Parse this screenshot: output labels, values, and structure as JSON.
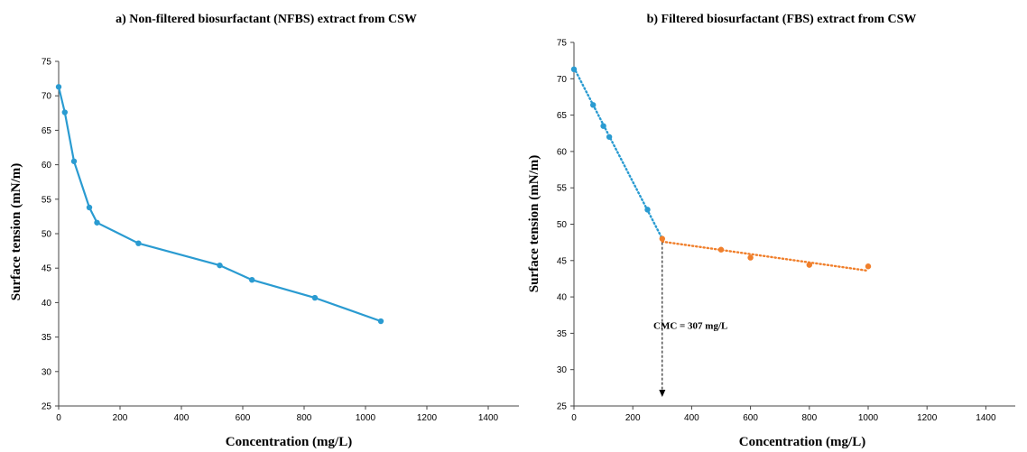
{
  "chart_data": [
    {
      "type": "line",
      "title": "a) Non-filtered biosurfactant (NFBS) extract from CSW",
      "xlabel": "Concentration (mg/L)",
      "ylabel": "Surface tension (mN/m)",
      "xlim": [
        0,
        1500
      ],
      "ylim": [
        25,
        75
      ],
      "xticks": [
        "0",
        "200",
        "400",
        "600",
        "800",
        "1000",
        "1200",
        "1400"
      ],
      "yticks": [
        "25",
        "30",
        "35",
        "40",
        "45",
        "50",
        "55",
        "60",
        "65",
        "70",
        "75"
      ],
      "grid": false,
      "series": [
        {
          "color": "#2a9bd1",
          "style": "solid",
          "x": [
            0,
            20,
            50,
            100,
            125,
            260,
            525,
            630,
            835,
            1050
          ],
          "y": [
            71.3,
            67.6,
            60.5,
            53.8,
            51.6,
            48.6,
            45.4,
            43.3,
            40.7,
            37.3
          ]
        }
      ]
    },
    {
      "type": "scatter",
      "title": "b) Filtered biosurfactant (FBS) extract from CSW",
      "xlabel": "Concentration (mg/L)",
      "ylabel": "Surface tension (mN/m)",
      "xlim": [
        0,
        1500
      ],
      "ylim": [
        25,
        75
      ],
      "xticks": [
        "0",
        "200",
        "400",
        "600",
        "800",
        "1000",
        "1200",
        "1400"
      ],
      "yticks": [
        "25",
        "30",
        "35",
        "40",
        "45",
        "50",
        "55",
        "60",
        "65",
        "70",
        "75"
      ],
      "grid": false,
      "series": [
        {
          "color": "#2a9bd1",
          "x": [
            0,
            65,
            100,
            120,
            250
          ],
          "y": [
            71.3,
            66.4,
            63.5,
            62.0,
            52.0
          ],
          "trendline": {
            "style": "dotted",
            "x": [
              0,
              300
            ],
            "y": [
              71.5,
              48.0
            ]
          }
        },
        {
          "color": "#f07f2b",
          "x": [
            300,
            500,
            600,
            800,
            1000
          ],
          "y": [
            48.0,
            46.5,
            45.4,
            44.4,
            44.2
          ],
          "trendline": {
            "style": "dotted",
            "x": [
              300,
              1000
            ],
            "y": [
              47.6,
              43.6
            ]
          }
        }
      ],
      "annotation": {
        "text": "CMC = 307 mg/L",
        "arrow_x": 300,
        "arrow_from_y": 48.0,
        "arrow_to_y": 25
      }
    }
  ]
}
